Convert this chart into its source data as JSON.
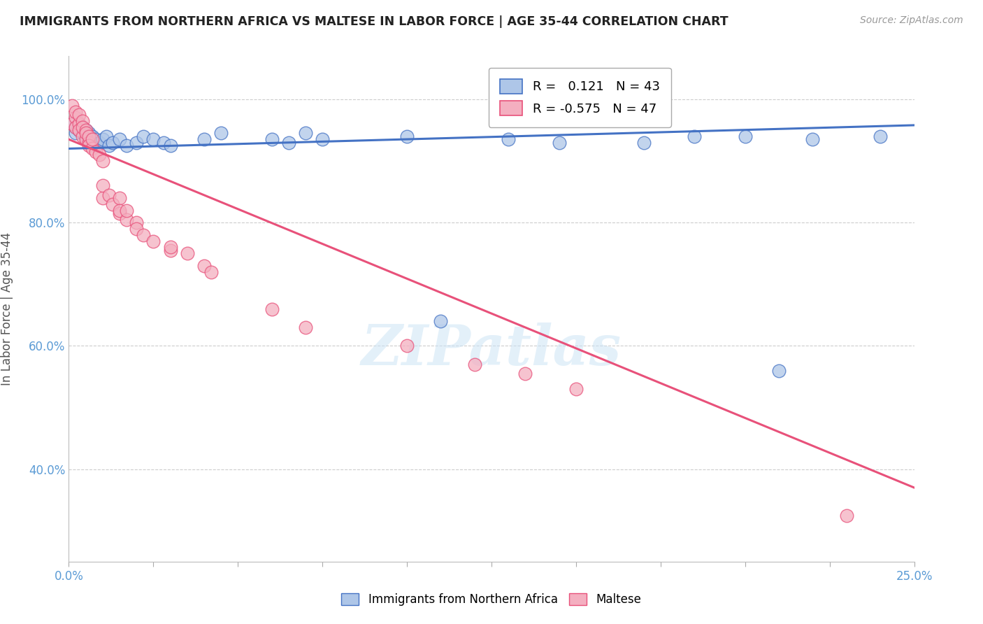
{
  "title": "IMMIGRANTS FROM NORTHERN AFRICA VS MALTESE IN LABOR FORCE | AGE 35-44 CORRELATION CHART",
  "source": "Source: ZipAtlas.com",
  "ylabel": "In Labor Force | Age 35-44",
  "xlim": [
    0.0,
    0.25
  ],
  "ylim": [
    0.25,
    1.07
  ],
  "xticks": [
    0.0,
    0.025,
    0.05,
    0.075,
    0.1,
    0.125,
    0.15,
    0.175,
    0.2,
    0.225,
    0.25
  ],
  "ytick_positions": [
    0.4,
    0.6,
    0.8,
    1.0
  ],
  "ytick_labels": [
    "40.0%",
    "60.0%",
    "80.0%",
    "100.0%"
  ],
  "blue_R": 0.121,
  "blue_N": 43,
  "pink_R": -0.575,
  "pink_N": 47,
  "blue_color": "#aec6e8",
  "pink_color": "#f4afc0",
  "blue_line_color": "#4472c4",
  "pink_line_color": "#e8517a",
  "blue_scatter": [
    [
      0.001,
      0.96
    ],
    [
      0.002,
      0.955
    ],
    [
      0.002,
      0.945
    ],
    [
      0.003,
      0.95
    ],
    [
      0.003,
      0.96
    ],
    [
      0.004,
      0.945
    ],
    [
      0.004,
      0.955
    ],
    [
      0.005,
      0.94
    ],
    [
      0.005,
      0.95
    ],
    [
      0.006,
      0.945
    ],
    [
      0.006,
      0.935
    ],
    [
      0.007,
      0.94
    ],
    [
      0.007,
      0.93
    ],
    [
      0.008,
      0.935
    ],
    [
      0.008,
      0.925
    ],
    [
      0.009,
      0.93
    ],
    [
      0.01,
      0.935
    ],
    [
      0.011,
      0.94
    ],
    [
      0.012,
      0.925
    ],
    [
      0.013,
      0.93
    ],
    [
      0.015,
      0.935
    ],
    [
      0.017,
      0.925
    ],
    [
      0.02,
      0.93
    ],
    [
      0.022,
      0.94
    ],
    [
      0.025,
      0.935
    ],
    [
      0.028,
      0.93
    ],
    [
      0.03,
      0.925
    ],
    [
      0.04,
      0.935
    ],
    [
      0.045,
      0.945
    ],
    [
      0.06,
      0.935
    ],
    [
      0.065,
      0.93
    ],
    [
      0.07,
      0.945
    ],
    [
      0.075,
      0.935
    ],
    [
      0.1,
      0.94
    ],
    [
      0.11,
      0.64
    ],
    [
      0.13,
      0.935
    ],
    [
      0.145,
      0.93
    ],
    [
      0.17,
      0.93
    ],
    [
      0.185,
      0.94
    ],
    [
      0.2,
      0.94
    ],
    [
      0.21,
      0.56
    ],
    [
      0.22,
      0.935
    ],
    [
      0.24,
      0.94
    ]
  ],
  "pink_scatter": [
    [
      0.001,
      0.99
    ],
    [
      0.001,
      0.96
    ],
    [
      0.002,
      0.97
    ],
    [
      0.002,
      0.955
    ],
    [
      0.002,
      0.98
    ],
    [
      0.003,
      0.96
    ],
    [
      0.003,
      0.975
    ],
    [
      0.003,
      0.95
    ],
    [
      0.004,
      0.965
    ],
    [
      0.004,
      0.94
    ],
    [
      0.004,
      0.955
    ],
    [
      0.005,
      0.95
    ],
    [
      0.005,
      0.935
    ],
    [
      0.005,
      0.945
    ],
    [
      0.006,
      0.93
    ],
    [
      0.006,
      0.94
    ],
    [
      0.006,
      0.925
    ],
    [
      0.007,
      0.92
    ],
    [
      0.007,
      0.935
    ],
    [
      0.008,
      0.915
    ],
    [
      0.009,
      0.91
    ],
    [
      0.01,
      0.9
    ],
    [
      0.01,
      0.84
    ],
    [
      0.01,
      0.86
    ],
    [
      0.012,
      0.845
    ],
    [
      0.013,
      0.83
    ],
    [
      0.015,
      0.815
    ],
    [
      0.015,
      0.84
    ],
    [
      0.015,
      0.82
    ],
    [
      0.017,
      0.805
    ],
    [
      0.017,
      0.82
    ],
    [
      0.02,
      0.8
    ],
    [
      0.02,
      0.79
    ],
    [
      0.022,
      0.78
    ],
    [
      0.025,
      0.77
    ],
    [
      0.03,
      0.755
    ],
    [
      0.03,
      0.76
    ],
    [
      0.035,
      0.75
    ],
    [
      0.04,
      0.73
    ],
    [
      0.042,
      0.72
    ],
    [
      0.06,
      0.66
    ],
    [
      0.07,
      0.63
    ],
    [
      0.1,
      0.6
    ],
    [
      0.12,
      0.57
    ],
    [
      0.135,
      0.555
    ],
    [
      0.15,
      0.53
    ],
    [
      0.23,
      0.325
    ]
  ],
  "blue_trend_x": [
    0.0,
    0.25
  ],
  "blue_trend_y": [
    0.92,
    0.958
  ],
  "pink_trend_x": [
    0.0,
    0.25
  ],
  "pink_trend_y": [
    0.935,
    0.37
  ],
  "watermark": "ZIPatlas",
  "grid_color": "#cccccc"
}
